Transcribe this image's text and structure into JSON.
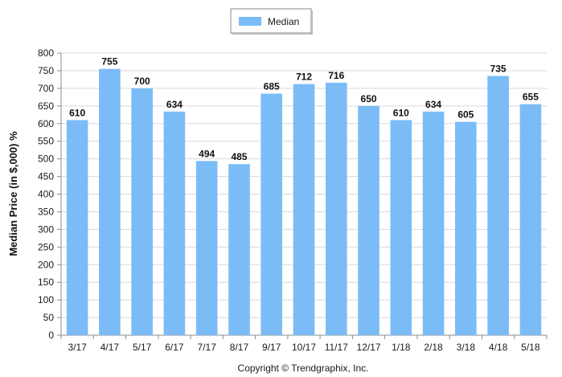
{
  "chart_data": {
    "type": "bar",
    "categories": [
      "3/17",
      "4/17",
      "5/17",
      "6/17",
      "7/17",
      "8/17",
      "9/17",
      "10/17",
      "11/17",
      "12/17",
      "1/18",
      "2/18",
      "3/18",
      "4/18",
      "5/18"
    ],
    "series": [
      {
        "name": "Median",
        "values": [
          610,
          755,
          700,
          634,
          494,
          485,
          685,
          712,
          716,
          650,
          610,
          634,
          605,
          735,
          655
        ],
        "color": "#7bbcf6"
      }
    ],
    "title": "",
    "xlabel": "",
    "ylabel": "Median Price (in $,000) %",
    "ylim": [
      0,
      800
    ],
    "yticks": [
      0,
      50,
      100,
      150,
      200,
      250,
      300,
      350,
      400,
      450,
      500,
      550,
      600,
      650,
      700,
      750,
      800
    ],
    "grid": true,
    "legend_position": "top-center",
    "data_labels": true
  },
  "footer": {
    "text": "Copyright © Trendgraphix, Inc."
  }
}
